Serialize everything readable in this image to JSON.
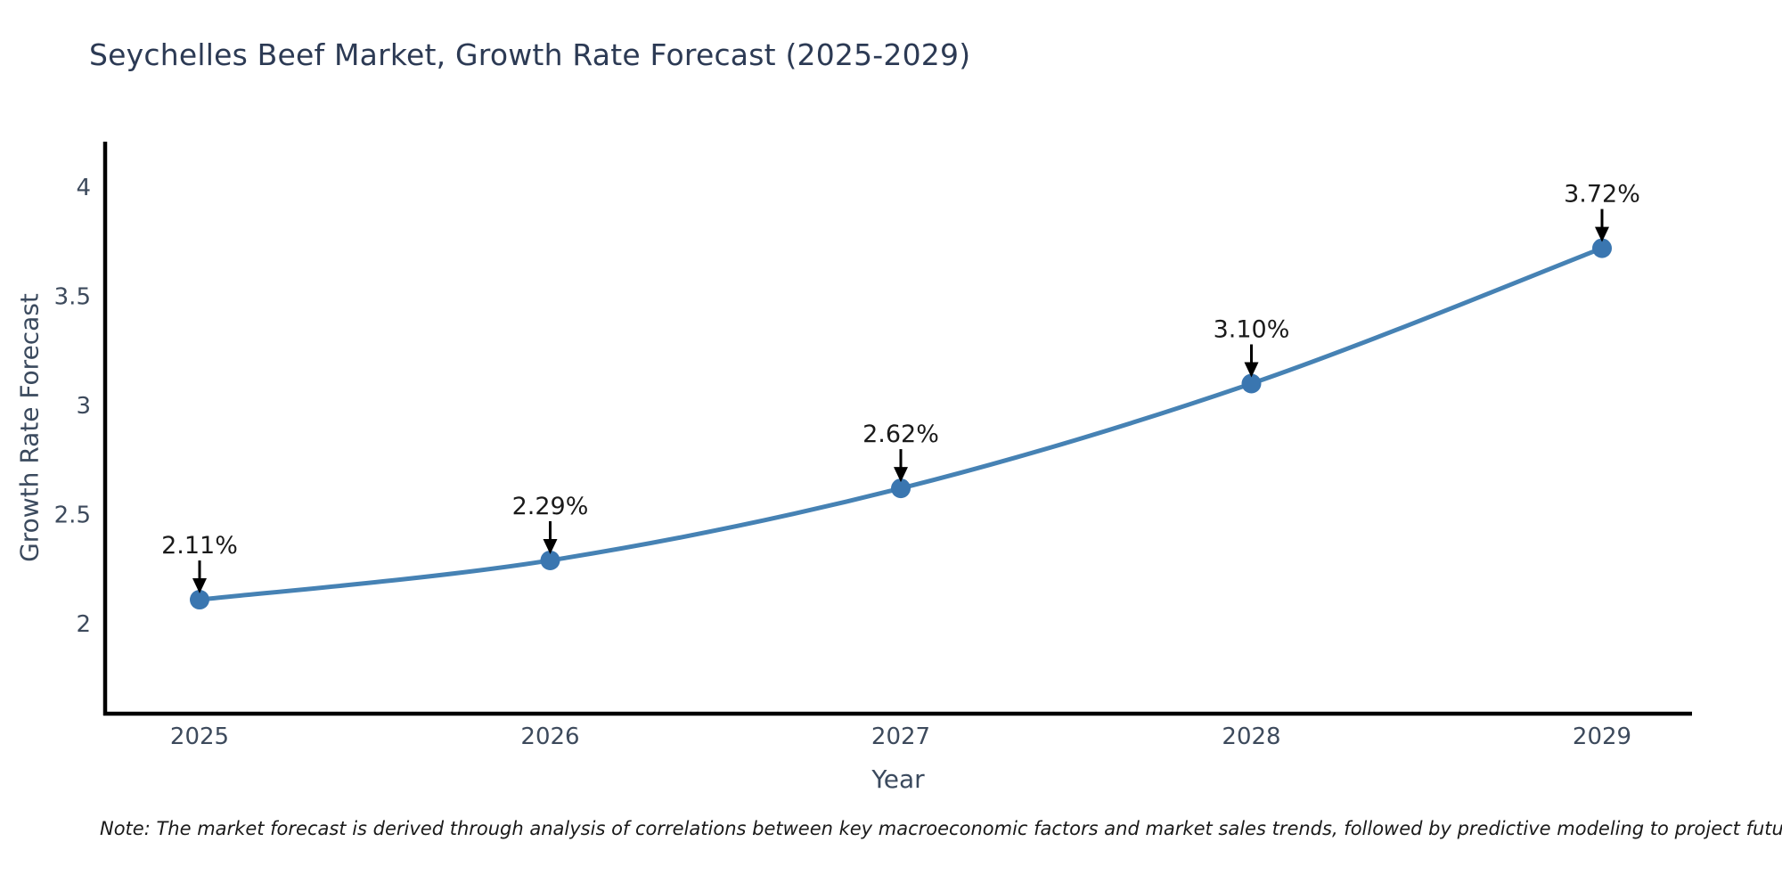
{
  "title": "Seychelles Beef Market, Growth Rate Forecast (2025-2029)",
  "note": "Note: The market forecast is derived through analysis of correlations between key macroeconomic factors and market sales trends, followed by predictive modeling to project future sales",
  "colors": {
    "title": "#2c3a54",
    "axis_label": "#3b4a5e",
    "tick_label": "#3d4a5c",
    "note": "#1a1a1a",
    "axis_line": "#000000",
    "line": "#4682b4",
    "marker": "#3a76b0",
    "annotation": "#1a1a1a",
    "arrow": "#000000",
    "background": "#ffffff"
  },
  "chart_data": {
    "type": "line",
    "title": "Seychelles Beef Market, Growth Rate Forecast (2025-2029)",
    "xlabel": "Year",
    "ylabel": "Growth Rate Forecast",
    "x": [
      2025,
      2026,
      2027,
      2028,
      2029
    ],
    "values": [
      2.11,
      2.29,
      2.62,
      3.1,
      3.72
    ],
    "point_labels": [
      "2.11%",
      "2.29%",
      "2.62%",
      "3.10%",
      "3.72%"
    ],
    "yticks": [
      "2",
      "2.5",
      "3",
      "3.5",
      "4"
    ],
    "ytick_values": [
      2,
      2.5,
      3,
      3.5,
      4
    ],
    "ylim": [
      1.59,
      4.21
    ],
    "curve": "spline",
    "grid": false,
    "legend": "none",
    "annotations": "black down-arrows from percent labels to markers"
  }
}
